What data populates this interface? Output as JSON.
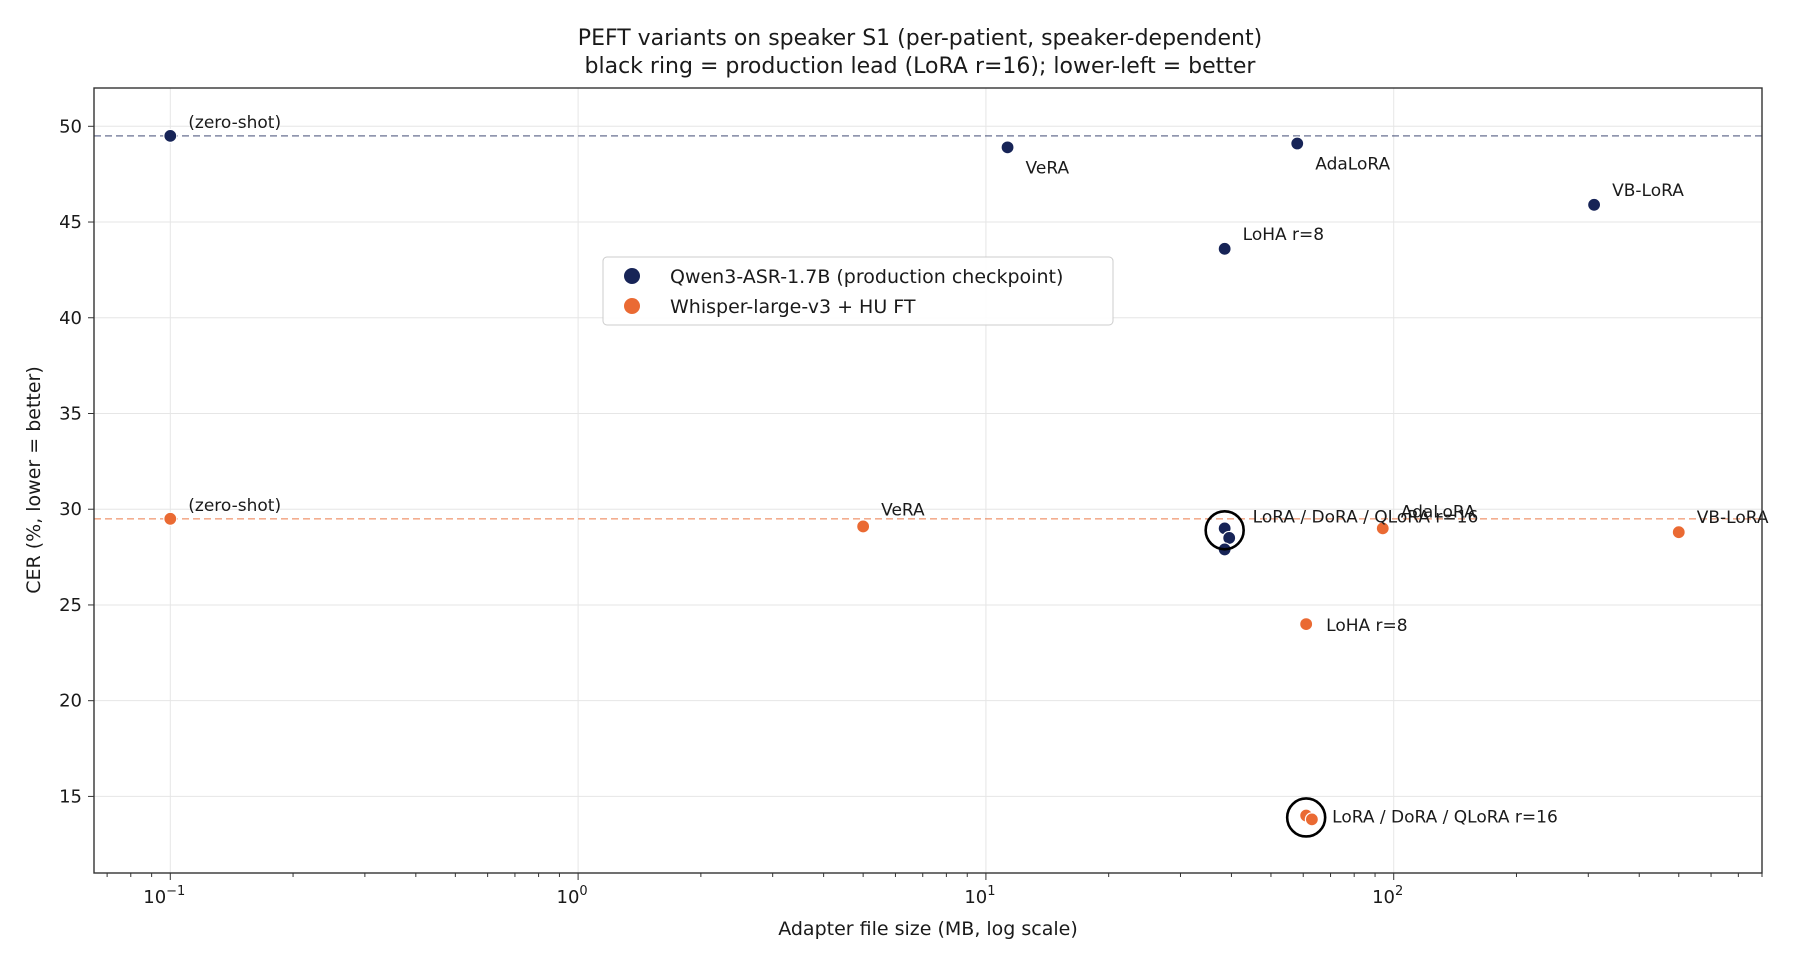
{
  "chart_data": {
    "type": "scatter",
    "title": "PEFT variants on speaker S1 (per-patient, speaker-dependent)",
    "subtitle": "black ring = production lead (LoRA r=16); lower-left = better",
    "xlabel": "Adapter file size (MB, log scale)",
    "ylabel": "CER (%, lower = better)",
    "x_scale": "log",
    "xlim": [
      0.065,
      800
    ],
    "ylim": [
      11,
      52
    ],
    "x_ticks": [
      0.1,
      1,
      10,
      100
    ],
    "x_tick_labels": [
      {
        "base": "10",
        "exp": "−1"
      },
      {
        "base": "10",
        "exp": "0"
      },
      {
        "base": "10",
        "exp": "1"
      },
      {
        "base": "10",
        "exp": "2"
      }
    ],
    "y_ticks": [
      15,
      20,
      25,
      30,
      35,
      40,
      45,
      50
    ],
    "grid": true,
    "legend_position": "upper-center-left",
    "series": [
      {
        "name": "Qwen3-ASR-1.7B (production checkpoint)",
        "color": "#172457",
        "baseline": 49.5,
        "points": [
          {
            "x": 0.1,
            "y": 49.5,
            "label": "(zero-shot)"
          },
          {
            "x": 11.3,
            "y": 48.9,
            "label": "VeRA"
          },
          {
            "x": 58,
            "y": 49.1,
            "label": "AdaLoRA"
          },
          {
            "x": 310,
            "y": 45.9,
            "label": "VB-LoRA"
          },
          {
            "x": 38.5,
            "y": 43.6,
            "label": "LoHA r=8"
          },
          {
            "x": 38.5,
            "y": 29.0,
            "label": "LoRA / DoRA / QLoRA r=16"
          },
          {
            "x": 39.5,
            "y": 28.5,
            "label": ""
          },
          {
            "x": 38.5,
            "y": 27.9,
            "label": ""
          }
        ],
        "production_lead": {
          "x": 38.5,
          "y": 28.9
        }
      },
      {
        "name": "Whisper-large-v3 + HU FT",
        "color": "#ea6a33",
        "baseline": 29.5,
        "points": [
          {
            "x": 0.1,
            "y": 29.5,
            "label": "(zero-shot)"
          },
          {
            "x": 5.0,
            "y": 29.1,
            "label": "VeRA"
          },
          {
            "x": 94,
            "y": 29.0,
            "label": "AdaLoRA"
          },
          {
            "x": 500,
            "y": 28.8,
            "label": "VB-LoRA"
          },
          {
            "x": 61,
            "y": 24.0,
            "label": "LoHA r=8"
          },
          {
            "x": 61,
            "y": 14.0,
            "label": "LoRA / DoRA / QLoRA r=16"
          },
          {
            "x": 63,
            "y": 13.8,
            "label": ""
          }
        ],
        "production_lead": {
          "x": 61,
          "y": 13.9
        }
      }
    ]
  }
}
